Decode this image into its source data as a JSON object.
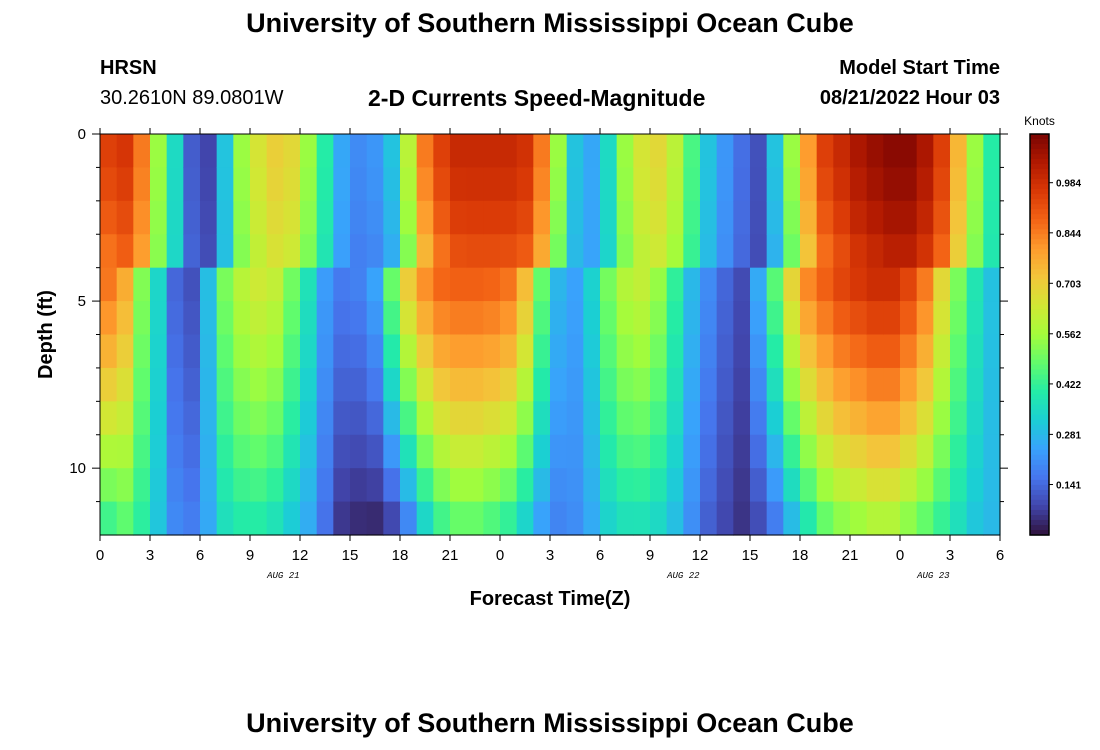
{
  "page": {
    "title": "University of Southern Mississippi Ocean Cube",
    "footer_title": "University of Southern Mississippi Ocean Cube"
  },
  "header": {
    "station": "HRSN",
    "coords": "30.2610N  89.0801W",
    "plot_title": "2-D Currents Speed-Magnitude",
    "model_start_label": "Model Start Time",
    "model_start_value": "08/21/2022 Hour 03"
  },
  "chart_data": {
    "type": "heatmap",
    "title": "2-D Currents Speed-Magnitude",
    "xlabel": "Forecast Time(Z)",
    "ylabel": "Depth (ft)",
    "x_ticks": [
      "0",
      "3",
      "6",
      "9",
      "12",
      "15",
      "18",
      "21",
      "0",
      "3",
      "6",
      "9",
      "12",
      "15",
      "18",
      "21",
      "0",
      "3",
      "6"
    ],
    "date_labels": [
      {
        "label": "AUG 21",
        "at_hour": 11
      },
      {
        "label": "AUG 22",
        "at_hour": 35
      },
      {
        "label": "AUG 23",
        "at_hour": 50
      }
    ],
    "y_ticks": [
      0,
      5,
      10
    ],
    "ylim": [
      0,
      12
    ],
    "xlim": [
      0,
      54
    ],
    "colorbar": {
      "title": "Knots",
      "ticks": [
        "0.141",
        "0.281",
        "0.422",
        "0.562",
        "0.703",
        "0.844",
        "0.984"
      ],
      "range": [
        0.0,
        1.12
      ],
      "colormap": [
        "#30123b",
        "#4145ab",
        "#4675ed",
        "#39a2fc",
        "#1bcfd4",
        "#24eca6",
        "#61fc6c",
        "#a4fc3b",
        "#d1e834",
        "#f3c63a",
        "#fe9b2d",
        "#f36315",
        "#d93806",
        "#b11901",
        "#7a0402"
      ]
    },
    "depth_levels": 12,
    "profile": {
      "note": "surface speed (knots) at each forecast hour, ~0..54",
      "hours": [
        0,
        1,
        2,
        3,
        4,
        5,
        6,
        7,
        8,
        9,
        10,
        11,
        12,
        13,
        14,
        15,
        16,
        17,
        18,
        19,
        20,
        21,
        22,
        23,
        24,
        25,
        26,
        27,
        28,
        29,
        30,
        31,
        32,
        33,
        34,
        35,
        36,
        37,
        38,
        39,
        40,
        41,
        42,
        43,
        44,
        45,
        46,
        47,
        48,
        49,
        50,
        51,
        52,
        53,
        54
      ],
      "surface": [
        0.95,
        0.97,
        0.85,
        0.55,
        0.35,
        0.12,
        0.08,
        0.3,
        0.55,
        0.65,
        0.7,
        0.68,
        0.55,
        0.4,
        0.25,
        0.2,
        0.22,
        0.3,
        0.6,
        0.85,
        0.95,
        1.0,
        1.0,
        1.0,
        1.0,
        0.98,
        0.85,
        0.55,
        0.3,
        0.25,
        0.35,
        0.55,
        0.65,
        0.68,
        0.6,
        0.45,
        0.3,
        0.22,
        0.15,
        0.1,
        0.3,
        0.55,
        0.8,
        0.95,
        1.0,
        1.05,
        1.08,
        1.1,
        1.1,
        1.05,
        0.95,
        0.75,
        0.55,
        0.4,
        0.3
      ],
      "bottom": [
        0.3,
        0.4,
        0.45,
        0.4,
        0.3,
        0.2,
        0.18,
        0.25,
        0.35,
        0.38,
        0.38,
        0.35,
        0.3,
        0.25,
        0.15,
        0.05,
        0.03,
        0.02,
        0.05,
        0.15,
        0.3,
        0.4,
        0.45,
        0.45,
        0.42,
        0.38,
        0.3,
        0.22,
        0.18,
        0.2,
        0.25,
        0.32,
        0.35,
        0.35,
        0.33,
        0.28,
        0.2,
        0.12,
        0.08,
        0.05,
        0.08,
        0.15,
        0.25,
        0.35,
        0.45,
        0.5,
        0.52,
        0.55,
        0.55,
        0.5,
        0.45,
        0.4,
        0.35,
        0.3,
        0.28
      ]
    }
  }
}
